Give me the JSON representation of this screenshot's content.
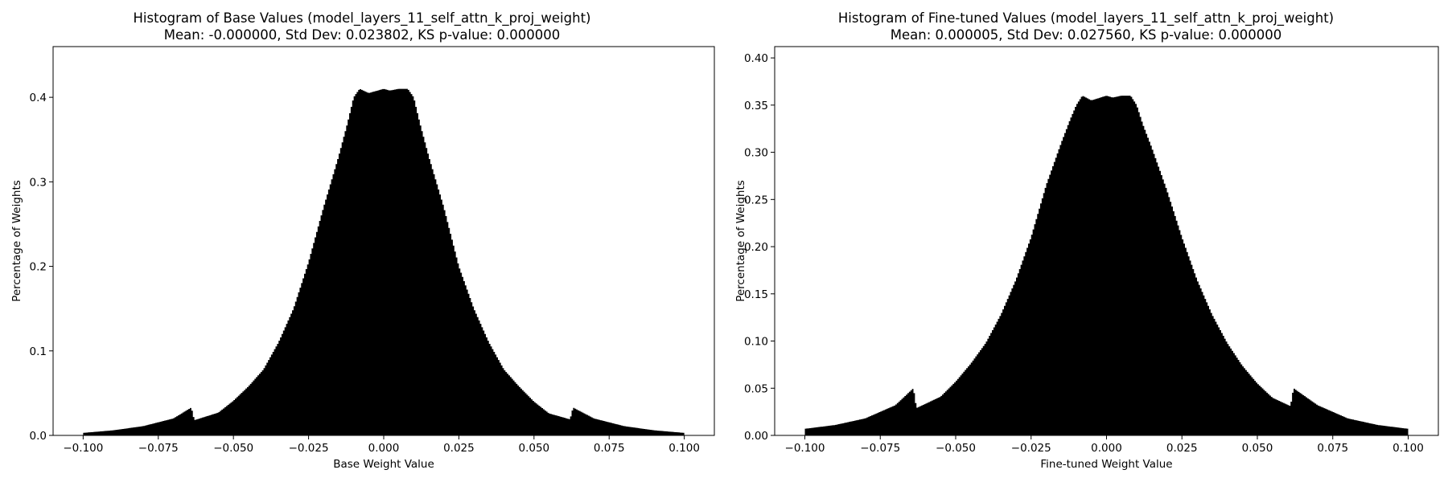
{
  "chart_data": [
    {
      "type": "bar",
      "title": "Histogram of Base Values (model_layers_11_self_attn_k_proj_weight)",
      "subtitle": "Mean: -0.000000, Std Dev: 0.023802, KS p-value: 0.000000",
      "xlabel": "Base Weight Value",
      "ylabel": "Percentage of Weights",
      "xlim": [
        -0.11,
        0.11
      ],
      "ylim": [
        0,
        0.46
      ],
      "xticks": [
        -0.1,
        -0.075,
        -0.05,
        -0.025,
        0.0,
        0.025,
        0.05,
        0.075,
        0.1
      ],
      "xtick_labels": [
        "−0.100",
        "−0.075",
        "−0.050",
        "−0.025",
        "0.000",
        "0.025",
        "0.050",
        "0.075",
        "0.100"
      ],
      "yticks": [
        0.0,
        0.1,
        0.2,
        0.3,
        0.4
      ],
      "ytick_labels": [
        "0.0",
        "0.1",
        "0.2",
        "0.3",
        "0.4"
      ],
      "bar_color": "#000000",
      "distribution": {
        "x": [
          -0.1,
          -0.09,
          -0.08,
          -0.07,
          -0.064,
          -0.063,
          -0.055,
          -0.05,
          -0.045,
          -0.04,
          -0.035,
          -0.03,
          -0.025,
          -0.02,
          -0.015,
          -0.012,
          -0.01,
          -0.008,
          -0.005,
          -0.002,
          0.0,
          0.002,
          0.005,
          0.008,
          0.01,
          0.012,
          0.015,
          0.02,
          0.025,
          0.03,
          0.035,
          0.04,
          0.045,
          0.05,
          0.055,
          0.062,
          0.063,
          0.07,
          0.08,
          0.09,
          0.1
        ],
        "y": [
          0.003,
          0.006,
          0.011,
          0.02,
          0.033,
          0.018,
          0.027,
          0.041,
          0.058,
          0.078,
          0.11,
          0.15,
          0.205,
          0.27,
          0.33,
          0.37,
          0.4,
          0.41,
          0.405,
          0.408,
          0.41,
          0.408,
          0.41,
          0.41,
          0.4,
          0.37,
          0.33,
          0.27,
          0.2,
          0.15,
          0.11,
          0.078,
          0.058,
          0.04,
          0.026,
          0.019,
          0.033,
          0.02,
          0.011,
          0.006,
          0.003
        ]
      }
    },
    {
      "type": "bar",
      "title": "Histogram of Fine-tuned Values (model_layers_11_self_attn_k_proj_weight)",
      "subtitle": "Mean: 0.000005, Std Dev: 0.027560, KS p-value: 0.000000",
      "xlabel": "Fine-tuned Weight Value",
      "ylabel": "Percentage of Weights",
      "xlim": [
        -0.11,
        0.11
      ],
      "ylim": [
        0,
        0.412
      ],
      "xticks": [
        -0.1,
        -0.075,
        -0.05,
        -0.025,
        0.0,
        0.025,
        0.05,
        0.075,
        0.1
      ],
      "xtick_labels": [
        "−0.100",
        "−0.075",
        "−0.050",
        "−0.025",
        "0.000",
        "0.025",
        "0.050",
        "0.075",
        "0.100"
      ],
      "yticks": [
        0.0,
        0.05,
        0.1,
        0.15,
        0.2,
        0.25,
        0.3,
        0.35,
        0.4
      ],
      "ytick_labels": [
        "0.00",
        "0.05",
        "0.10",
        "0.15",
        "0.20",
        "0.25",
        "0.30",
        "0.35",
        "0.40"
      ],
      "bar_color": "#000000",
      "distribution": {
        "x": [
          -0.1,
          -0.09,
          -0.08,
          -0.07,
          -0.064,
          -0.063,
          -0.055,
          -0.05,
          -0.045,
          -0.04,
          -0.035,
          -0.03,
          -0.025,
          -0.02,
          -0.015,
          -0.012,
          -0.01,
          -0.008,
          -0.005,
          -0.002,
          0.0,
          0.002,
          0.005,
          0.008,
          0.01,
          0.012,
          0.015,
          0.02,
          0.025,
          0.03,
          0.035,
          0.04,
          0.045,
          0.05,
          0.055,
          0.061,
          0.062,
          0.07,
          0.08,
          0.09,
          0.1
        ],
        "y": [
          0.007,
          0.011,
          0.018,
          0.032,
          0.05,
          0.029,
          0.041,
          0.057,
          0.076,
          0.098,
          0.128,
          0.165,
          0.21,
          0.265,
          0.31,
          0.335,
          0.35,
          0.36,
          0.355,
          0.358,
          0.36,
          0.358,
          0.36,
          0.36,
          0.35,
          0.33,
          0.305,
          0.26,
          0.21,
          0.165,
          0.128,
          0.098,
          0.074,
          0.055,
          0.04,
          0.031,
          0.05,
          0.032,
          0.018,
          0.011,
          0.007
        ]
      }
    }
  ]
}
